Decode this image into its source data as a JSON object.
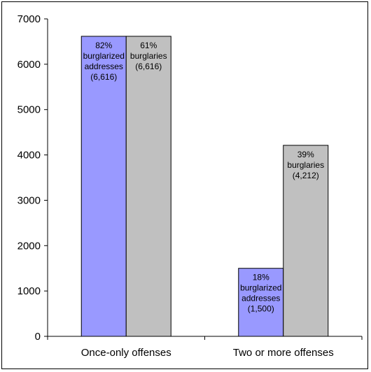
{
  "chart_data": {
    "type": "bar",
    "categories": [
      "Once-only offenses",
      "Two or more offenses"
    ],
    "series": [
      {
        "color": "#9999ff",
        "values": [
          6616,
          1500
        ],
        "labels": [
          [
            "82%",
            "burglarized",
            "addresses",
            "(6,616)"
          ],
          [
            "18%",
            "burglarized",
            "addresses",
            "(1,500)"
          ]
        ]
      },
      {
        "color": "#c0c0c0",
        "values": [
          6616,
          4212
        ],
        "labels": [
          [
            "61%",
            "burglaries",
            "(6,616)"
          ],
          [
            "39%",
            "burglaries",
            "(4,212)"
          ]
        ]
      }
    ],
    "ylim": [
      0,
      7000
    ],
    "yticks": [
      0,
      1000,
      2000,
      3000,
      4000,
      5000,
      6000,
      7000
    ],
    "title": "",
    "xlabel": "",
    "ylabel": "",
    "grid": false,
    "legend": "none"
  }
}
